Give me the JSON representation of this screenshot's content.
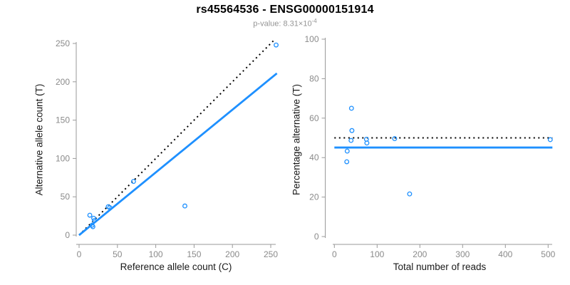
{
  "header": {
    "title": "rs45564536 - ENSG00000151914",
    "pvalue_prefix": "p-value: 8.31×10",
    "pvalue_exponent": "-4"
  },
  "colors": {
    "accent_blue": "#1E90FF",
    "dotted_black": "#000000",
    "axis_gray": "#9a9a9a",
    "tick_label_gray": "#8a8a8a",
    "axis_title_color": "#1a1a1a",
    "subtitle_gray": "#949494",
    "background": "#ffffff"
  },
  "chart_data": [
    {
      "type": "scatter",
      "xlabel": "Reference allele count (C)",
      "ylabel": "Alternative allele count (T)",
      "xlim": [
        0,
        250
      ],
      "ylim": [
        0,
        250
      ],
      "xticks": [
        0,
        50,
        100,
        150,
        200,
        250
      ],
      "yticks": [
        0,
        50,
        100,
        150,
        200,
        250
      ],
      "grid": false,
      "legend": null,
      "points": [
        [
          14,
          26
        ],
        [
          19,
          22
        ],
        [
          20,
          19
        ],
        [
          17,
          13
        ],
        [
          18,
          11
        ],
        [
          38,
          37
        ],
        [
          40,
          36
        ],
        [
          71,
          70
        ],
        [
          138,
          38
        ],
        [
          257,
          248
        ]
      ],
      "lines": [
        {
          "name": "identity-line",
          "style": "dotted",
          "color": "#000000",
          "from": [
            0,
            0
          ],
          "to": [
            255,
            255
          ]
        },
        {
          "name": "regression-line",
          "style": "solid",
          "color": "#1E90FF",
          "from": [
            0,
            0
          ],
          "to": [
            258,
            211
          ]
        }
      ]
    },
    {
      "type": "scatter",
      "xlabel": "Total number of reads",
      "ylabel": "Percentage alternative (T)",
      "xlim": [
        0,
        500
      ],
      "ylim": [
        0,
        100
      ],
      "xticks": [
        0,
        100,
        200,
        300,
        400,
        500
      ],
      "yticks": [
        0,
        20,
        40,
        60,
        80,
        100
      ],
      "grid": false,
      "legend": null,
      "points": [
        [
          40,
          65.0
        ],
        [
          41,
          53.7
        ],
        [
          39,
          48.7
        ],
        [
          30,
          43.3
        ],
        [
          29,
          37.9
        ],
        [
          75,
          49.3
        ],
        [
          76,
          47.4
        ],
        [
          141,
          49.6
        ],
        [
          176,
          21.6
        ],
        [
          505,
          49.1
        ]
      ],
      "lines": [
        {
          "name": "expected-50-percent-line",
          "style": "dotted",
          "color": "#000000",
          "y": 50
        },
        {
          "name": "mean-percentage-line",
          "style": "solid",
          "color": "#1E90FF",
          "y": 45.1
        }
      ]
    }
  ]
}
